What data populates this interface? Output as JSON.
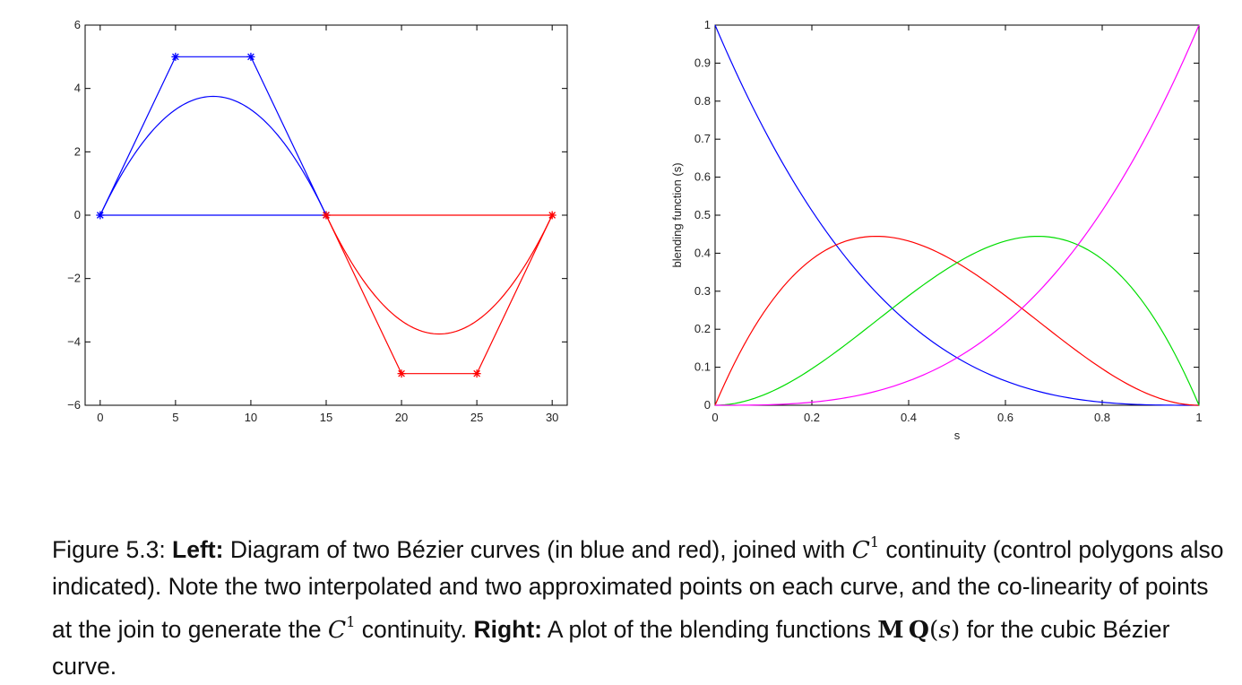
{
  "chart_data": [
    {
      "type": "line",
      "title": "",
      "xlabel": "",
      "ylabel": "",
      "xlim": [
        -1,
        31
      ],
      "ylim": [
        -6,
        6
      ],
      "xticks": [
        0,
        5,
        10,
        15,
        20,
        25,
        30
      ],
      "yticks": [
        -6,
        -4,
        -2,
        0,
        2,
        4,
        6
      ],
      "ytick_labels": [
        "−6",
        "−4",
        "−2",
        "0",
        "2",
        "4",
        "6"
      ],
      "grid": false,
      "series": [
        {
          "color": "#0000ff",
          "kind": "control_polygon",
          "marker": "*",
          "x": [
            0,
            5,
            10,
            15,
            0
          ],
          "y": [
            0,
            5,
            5,
            0,
            0
          ]
        },
        {
          "color": "#0000ff",
          "kind": "bezier_curve",
          "control_x": [
            0,
            5,
            10,
            15
          ],
          "control_y": [
            0,
            5,
            5,
            0
          ]
        },
        {
          "color": "#ff0000",
          "kind": "control_polygon",
          "marker": "*",
          "x": [
            15,
            20,
            25,
            30,
            15
          ],
          "y": [
            0,
            -5,
            -5,
            0,
            0
          ]
        },
        {
          "color": "#ff0000",
          "kind": "bezier_curve",
          "control_x": [
            15,
            20,
            25,
            30
          ],
          "control_y": [
            0,
            -5,
            -5,
            0
          ]
        }
      ]
    },
    {
      "type": "line",
      "title": "",
      "xlabel": "s",
      "ylabel": "blending function (s)",
      "xlim": [
        0,
        1
      ],
      "ylim": [
        0,
        1
      ],
      "xticks": [
        0,
        0.2,
        0.4,
        0.6,
        0.8,
        1
      ],
      "xtick_labels": [
        "0",
        "0.2",
        "0.4",
        "0.6",
        "0.8",
        "1"
      ],
      "yticks": [
        0,
        0.1,
        0.2,
        0.3,
        0.4,
        0.5,
        0.6,
        0.7,
        0.8,
        0.9,
        1
      ],
      "ytick_labels": [
        "0",
        "0.1",
        "0.2",
        "0.3",
        "0.4",
        "0.5",
        "0.6",
        "0.7",
        "0.8",
        "0.9",
        "1"
      ],
      "grid": false,
      "series": [
        {
          "color": "#0000ff",
          "s": [
            0,
            0.1,
            0.2,
            0.3,
            0.4,
            0.5,
            0.6,
            0.7,
            0.8,
            0.9,
            1
          ],
          "values": [
            1,
            0.729,
            0.512,
            0.343,
            0.216,
            0.125,
            0.064,
            0.027,
            0.008,
            0.001,
            0
          ]
        },
        {
          "color": "#ff0000",
          "s": [
            0,
            0.1,
            0.2,
            0.3,
            0.4,
            0.5,
            0.6,
            0.7,
            0.8,
            0.9,
            1
          ],
          "values": [
            0,
            0.243,
            0.384,
            0.441,
            0.432,
            0.375,
            0.288,
            0.189,
            0.096,
            0.027,
            0
          ]
        },
        {
          "color": "#00dd00",
          "s": [
            0,
            0.1,
            0.2,
            0.3,
            0.4,
            0.5,
            0.6,
            0.7,
            0.8,
            0.9,
            1
          ],
          "values": [
            0,
            0.027,
            0.096,
            0.189,
            0.288,
            0.375,
            0.432,
            0.441,
            0.384,
            0.243,
            0
          ]
        },
        {
          "color": "#ff00ff",
          "s": [
            0,
            0.1,
            0.2,
            0.3,
            0.4,
            0.5,
            0.6,
            0.7,
            0.8,
            0.9,
            1
          ],
          "values": [
            0,
            0.001,
            0.008,
            0.027,
            0.064,
            0.125,
            0.216,
            0.343,
            0.512,
            0.729,
            1
          ]
        }
      ]
    }
  ],
  "caption": {
    "fig_label": "Figure 5.3: ",
    "left_bold": "Left:",
    "text1": " Diagram of two Bézier curves (in blue and red), joined with ",
    "c_symbol": "C",
    "c_sup": "1",
    "text2": " continuity (control polygons also indicated). Note the two interpolated and two approximated points on each curve, and the co-linearity of points at the join to generate the ",
    "text3": " continuity.  ",
    "right_bold": "Right:",
    "text4": " A plot of the blending functions ",
    "m_symbol": "M",
    "q_symbol": "Q",
    "s_open": "(",
    "s_symbol": "s",
    "s_close": ")",
    "text5": " for the cubic Bézier curve."
  }
}
